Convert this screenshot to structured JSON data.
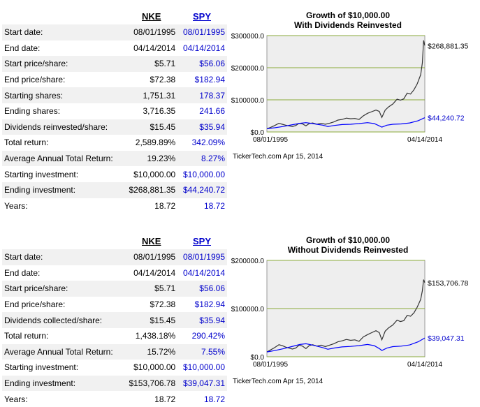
{
  "tables": [
    {
      "col1": "NKE",
      "col2": "SPY",
      "rows": [
        {
          "label": "Start date:",
          "v1": "08/01/1995",
          "v2": "08/01/1995"
        },
        {
          "label": "End date:",
          "v1": "04/14/2014",
          "v2": "04/14/2014"
        },
        {
          "label": "Start price/share:",
          "v1": "$5.71",
          "v2": "$56.06"
        },
        {
          "label": "End price/share:",
          "v1": "$72.38",
          "v2": "$182.94"
        },
        {
          "label": "Starting shares:",
          "v1": "1,751.31",
          "v2": "178.37"
        },
        {
          "label": "Ending shares:",
          "v1": "3,716.35",
          "v2": "241.66"
        },
        {
          "label": "Dividends reinvested/share:",
          "v1": "$15.45",
          "v2": "$35.94"
        },
        {
          "label": "Total return:",
          "v1": "2,589.89%",
          "v2": "342.09%"
        },
        {
          "label": "Average Annual Total Return:",
          "v1": "19.23%",
          "v2": "8.27%"
        },
        {
          "label": "Starting investment:",
          "v1": "$10,000.00",
          "v2": "$10,000.00"
        },
        {
          "label": "Ending investment:",
          "v1": "$268,881.35",
          "v2": "$44,240.72"
        },
        {
          "label": "Years:",
          "v1": "18.72",
          "v2": "18.72"
        }
      ]
    },
    {
      "col1": "NKE",
      "col2": "SPY",
      "rows": [
        {
          "label": "Start date:",
          "v1": "08/01/1995",
          "v2": "08/01/1995"
        },
        {
          "label": "End date:",
          "v1": "04/14/2014",
          "v2": "04/14/2014"
        },
        {
          "label": "Start price/share:",
          "v1": "$5.71",
          "v2": "$56.06"
        },
        {
          "label": "End price/share:",
          "v1": "$72.38",
          "v2": "$182.94"
        },
        {
          "label": "Dividends collected/share:",
          "v1": "$15.45",
          "v2": "$35.94"
        },
        {
          "label": "Total return:",
          "v1": "1,438.18%",
          "v2": "290.42%"
        },
        {
          "label": "Average Annual Total Return:",
          "v1": "15.72%",
          "v2": "7.55%"
        },
        {
          "label": "Starting investment:",
          "v1": "$10,000.00",
          "v2": "$10,000.00"
        },
        {
          "label": "Ending investment:",
          "v1": "$153,706.78",
          "v2": "$39,047.31"
        },
        {
          "label": "Years:",
          "v1": "18.72",
          "v2": "18.72"
        }
      ]
    }
  ],
  "chart_data": [
    {
      "type": "line",
      "title": "Growth of $10,000.00",
      "subtitle": "With Dividends Reinvested",
      "ylim": [
        0,
        300000
      ],
      "yticks": [
        "$0.0",
        "$100000.0",
        "$200000.0",
        "$300000.0"
      ],
      "ytick_values": [
        0,
        100000,
        200000,
        300000
      ],
      "xlabels": [
        "08/01/1995",
        "04/14/2014"
      ],
      "x_range": [
        1995.58,
        2014.29
      ],
      "grid": true,
      "credit": "TickerTech.com Apr 15, 2014",
      "colors": {
        "NKE": "#333333",
        "SPY": "#0000ff",
        "grid": "#8aaa3a",
        "plot_bg": "#eeeeee"
      },
      "series": [
        {
          "name": "NKE",
          "end_label": "$268,881.35",
          "x": [
            1995.58,
            1996.0,
            1996.5,
            1997.0,
            1997.4,
            1997.8,
            1998.2,
            1998.6,
            1999.0,
            1999.4,
            1999.8,
            2000.2,
            2000.6,
            2001.0,
            2001.5,
            2002.0,
            2002.5,
            2003.0,
            2003.5,
            2004.0,
            2004.5,
            2005.0,
            2005.5,
            2006.0,
            2006.5,
            2007.0,
            2007.5,
            2008.0,
            2008.5,
            2008.9,
            2009.2,
            2009.6,
            2010.0,
            2010.5,
            2011.0,
            2011.4,
            2011.8,
            2012.2,
            2012.6,
            2013.0,
            2013.4,
            2013.8,
            2014.0,
            2014.15,
            2014.29
          ],
          "values": [
            10000,
            14000,
            20000,
            27000,
            24000,
            21000,
            19000,
            17000,
            20000,
            27000,
            25000,
            19000,
            26000,
            28000,
            24000,
            27000,
            24000,
            27000,
            31000,
            37000,
            39000,
            43000,
            41000,
            42000,
            39000,
            50000,
            58000,
            63000,
            68000,
            64000,
            45000,
            68000,
            78000,
            87000,
            102000,
            99000,
            103000,
            121000,
            118000,
            131000,
            150000,
            178000,
            215000,
            285000,
            268881
          ]
        },
        {
          "name": "SPY",
          "end_label": "$44,240.72",
          "x": [
            1995.58,
            1996.5,
            1997.5,
            1998.5,
            1999.5,
            2000.2,
            2000.8,
            2001.5,
            2002.2,
            2002.8,
            2003.5,
            2004.5,
            2005.5,
            2006.5,
            2007.5,
            2008.3,
            2008.9,
            2009.2,
            2009.8,
            2010.5,
            2011.5,
            2012.5,
            2013.5,
            2014.29
          ],
          "values": [
            10000,
            13000,
            17000,
            22000,
            27000,
            29000,
            27000,
            24000,
            21000,
            17000,
            20000,
            23000,
            24000,
            26000,
            29000,
            26000,
            19000,
            15000,
            21000,
            24000,
            25000,
            28000,
            35000,
            44240
          ]
        }
      ]
    },
    {
      "type": "line",
      "title": "Growth of $10,000.00",
      "subtitle": "Without Dividends Reinvested",
      "ylim": [
        0,
        200000
      ],
      "yticks": [
        "$0.0",
        "$100000.0",
        "$200000.0"
      ],
      "ytick_values": [
        0,
        100000,
        200000
      ],
      "xlabels": [
        "08/01/1995",
        "04/14/2014"
      ],
      "x_range": [
        1995.58,
        2014.29
      ],
      "grid": true,
      "credit": "TickerTech.com Apr 15, 2014",
      "colors": {
        "NKE": "#333333",
        "SPY": "#0000ff",
        "grid": "#8aaa3a",
        "plot_bg": "#eeeeee"
      },
      "series": [
        {
          "name": "NKE",
          "end_label": "$153,706.78",
          "x": [
            1995.58,
            1996.0,
            1996.5,
            1997.0,
            1997.4,
            1997.8,
            1998.2,
            1998.6,
            1999.0,
            1999.4,
            1999.8,
            2000.2,
            2000.6,
            2001.0,
            2001.5,
            2002.0,
            2002.5,
            2003.0,
            2003.5,
            2004.0,
            2004.5,
            2005.0,
            2005.5,
            2006.0,
            2006.5,
            2007.0,
            2007.5,
            2008.0,
            2008.5,
            2008.9,
            2009.2,
            2009.6,
            2010.0,
            2010.5,
            2011.0,
            2011.4,
            2011.8,
            2012.2,
            2012.6,
            2013.0,
            2013.4,
            2013.8,
            2014.0,
            2014.15,
            2014.29
          ],
          "values": [
            10000,
            14000,
            19000,
            25000,
            23000,
            20000,
            18000,
            16000,
            18000,
            24000,
            22000,
            17000,
            23000,
            25000,
            22000,
            24000,
            21000,
            24000,
            27000,
            31000,
            33000,
            36000,
            34000,
            35000,
            32000,
            41000,
            46000,
            50000,
            54000,
            50000,
            35000,
            53000,
            60000,
            66000,
            76000,
            73000,
            75000,
            86000,
            84000,
            91000,
            103000,
            119000,
            137000,
            160000,
            153706
          ]
        },
        {
          "name": "SPY",
          "end_label": "$39,047.31",
          "x": [
            1995.58,
            1996.5,
            1997.5,
            1998.5,
            1999.5,
            2000.2,
            2000.8,
            2001.5,
            2002.2,
            2002.8,
            2003.5,
            2004.5,
            2005.5,
            2006.5,
            2007.5,
            2008.3,
            2008.9,
            2009.2,
            2009.8,
            2010.5,
            2011.5,
            2012.5,
            2013.5,
            2014.29
          ],
          "values": [
            10000,
            12800,
            16500,
            21000,
            25500,
            27000,
            25000,
            22000,
            19000,
            15500,
            18000,
            20500,
            21500,
            23000,
            25500,
            23000,
            17000,
            13000,
            18000,
            21000,
            22000,
            24500,
            31000,
            39047
          ]
        }
      ]
    }
  ]
}
